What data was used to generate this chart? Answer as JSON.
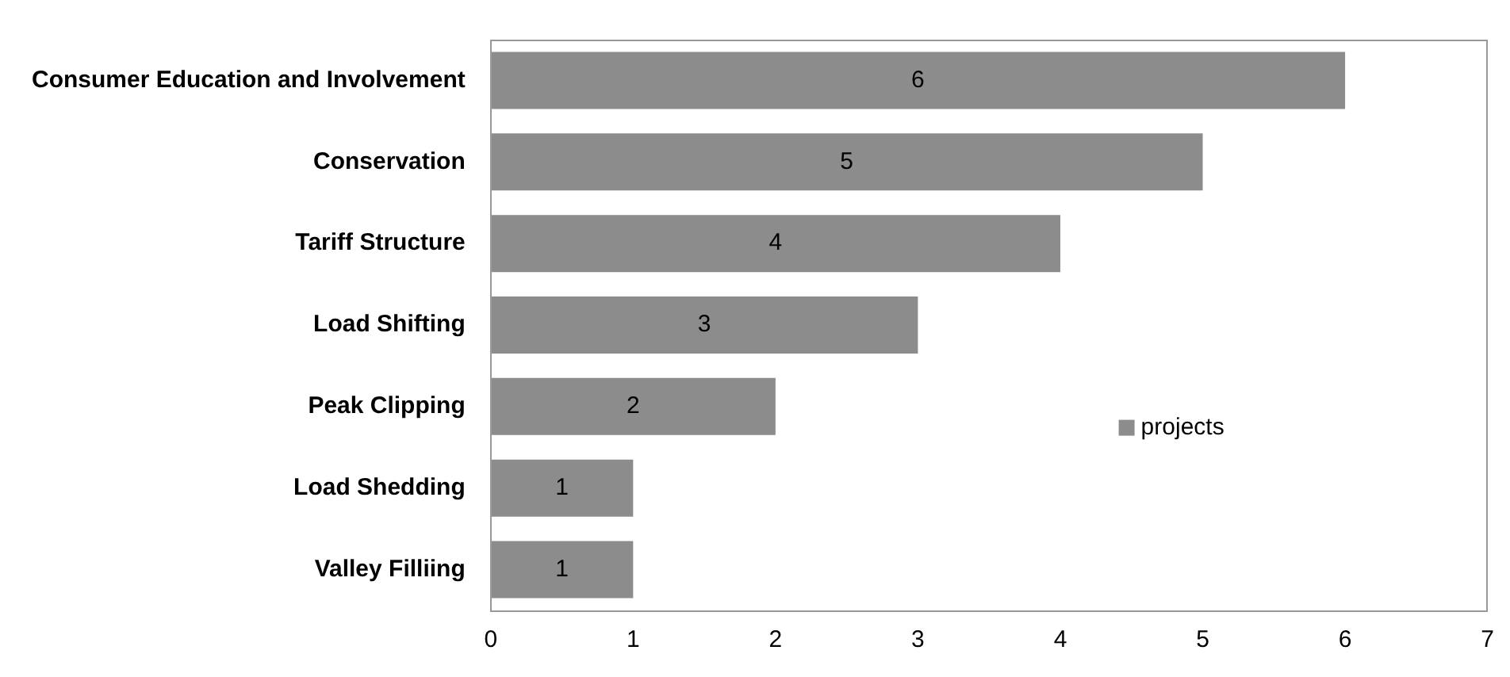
{
  "chart_data": {
    "type": "bar",
    "orientation": "horizontal",
    "categories": [
      "Consumer Education and Involvement",
      "Conservation",
      "Tariff Structure",
      "Load Shifting",
      "Peak Clipping",
      "Load Shedding",
      "Valley Filliing"
    ],
    "series": [
      {
        "name": "projects",
        "color": "#8c8c8c",
        "values": [
          6,
          5,
          4,
          3,
          2,
          1,
          1
        ]
      }
    ],
    "xlim": [
      0,
      7
    ],
    "xticks": [
      0,
      1,
      2,
      3,
      4,
      5,
      6,
      7
    ],
    "grid": false,
    "legend": "right",
    "data_labels": true
  }
}
